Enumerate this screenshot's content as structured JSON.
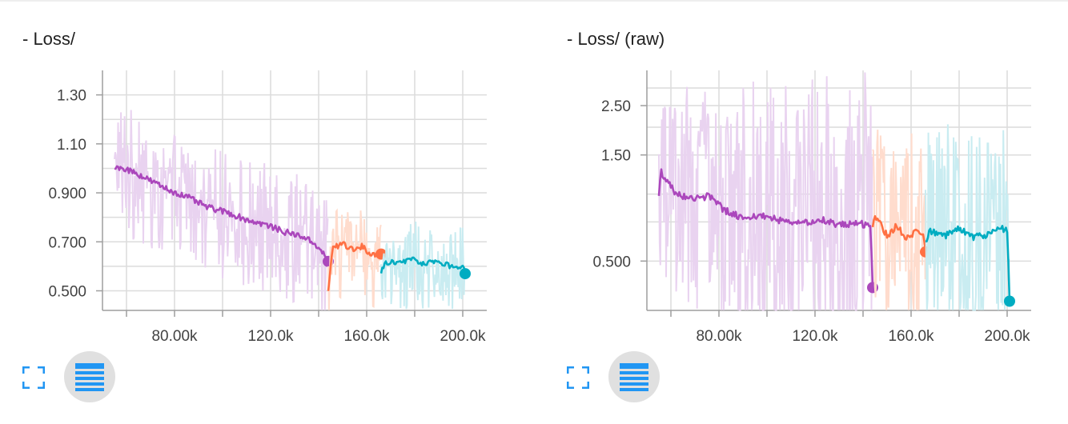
{
  "colors": {
    "grid": "#dcdcdc",
    "axis": "#9e9e9e",
    "button_blue": "#2196f3",
    "button_bg": "#e0e0e0"
  },
  "cards": [
    {
      "title": "- Loss/",
      "expand_icon": "fullscreen-icon",
      "data_icon": "list-icon"
    },
    {
      "title": "- Loss/ (raw)",
      "expand_icon": "fullscreen-icon",
      "data_icon": "list-icon"
    }
  ],
  "chart_data": [
    {
      "type": "line",
      "title": "- Loss/",
      "xlabel": "",
      "ylabel": "",
      "xlim": [
        50000,
        210000
      ],
      "ylim": [
        0.42,
        1.4
      ],
      "y_scale": "linear",
      "x_ticks": [
        80000,
        120000,
        160000,
        200000
      ],
      "x_tick_labels": [
        "80.00k",
        "120.0k",
        "160.0k",
        "200.0k"
      ],
      "y_ticks": [
        0.5,
        0.7,
        0.9,
        1.1,
        1.3
      ],
      "y_tick_labels": [
        "0.500",
        "0.700",
        "0.900",
        "1.10",
        "1.30"
      ],
      "grid": true,
      "legend": "none",
      "series": [
        {
          "color": "#ab47bc",
          "raw_color": "#e9d3f0",
          "x": [
            55000,
            62000,
            70000,
            78000,
            86000,
            94000,
            102000,
            110000,
            118000,
            126000,
            134000,
            140000,
            144000
          ],
          "y": [
            1.01,
            0.99,
            0.95,
            0.91,
            0.88,
            0.84,
            0.82,
            0.79,
            0.77,
            0.74,
            0.72,
            0.68,
            0.62
          ],
          "raw_range": [
            0.28,
            0.25
          ]
        },
        {
          "color": "#ff7043",
          "raw_color": "#ffdccd",
          "x": [
            144000,
            146000,
            150000,
            154000,
            158000,
            162000,
            166000
          ],
          "y": [
            0.5,
            0.68,
            0.69,
            0.67,
            0.68,
            0.65,
            0.65
          ],
          "raw_range": [
            0.22,
            0.15
          ]
        },
        {
          "color": "#00acc1",
          "raw_color": "#c9ecf1",
          "x": [
            166000,
            168000,
            172000,
            176000,
            180000,
            184000,
            188000,
            192000,
            196000,
            200000,
            201000
          ],
          "y": [
            0.58,
            0.62,
            0.61,
            0.62,
            0.63,
            0.61,
            0.62,
            0.61,
            0.6,
            0.6,
            0.57
          ],
          "raw_range": [
            0.2,
            0.16
          ]
        }
      ]
    },
    {
      "type": "line",
      "title": "- Loss/ (raw)",
      "xlabel": "",
      "ylabel": "",
      "xlim": [
        50000,
        210000
      ],
      "ylim": [
        0.3,
        3.6
      ],
      "y_scale": "log",
      "x_ticks": [
        80000,
        120000,
        160000,
        200000
      ],
      "x_tick_labels": [
        "80.00k",
        "120.0k",
        "160.0k",
        "200.0k"
      ],
      "y_ticks": [
        0.5,
        1.5,
        2.5
      ],
      "y_tick_labels": [
        "0.500",
        "1.50",
        "2.50"
      ],
      "grid": true,
      "legend": "none",
      "series": [
        {
          "color": "#ab47bc",
          "raw_color": "#e9d3f0",
          "x": [
            55000,
            56000,
            62000,
            70000,
            76000,
            82000,
            90000,
            98000,
            106000,
            114000,
            122000,
            130000,
            138000,
            143000,
            144000
          ],
          "y": [
            1.0,
            1.25,
            1.0,
            0.95,
            0.98,
            0.85,
            0.78,
            0.8,
            0.76,
            0.74,
            0.77,
            0.73,
            0.74,
            0.72,
            0.38
          ],
          "raw_range": [
            0.55,
            1.6
          ]
        },
        {
          "color": "#ff7043",
          "raw_color": "#ffdccd",
          "x": [
            144000,
            145000,
            150000,
            154000,
            158000,
            162000,
            165000,
            166000
          ],
          "y": [
            0.72,
            0.8,
            0.65,
            0.72,
            0.64,
            0.68,
            0.66,
            0.55
          ],
          "raw_range": [
            0.35,
            1.1
          ]
        },
        {
          "color": "#00acc1",
          "raw_color": "#c9ecf1",
          "x": [
            166000,
            168000,
            174000,
            180000,
            186000,
            192000,
            198000,
            200000,
            201000
          ],
          "y": [
            0.62,
            0.68,
            0.65,
            0.7,
            0.64,
            0.66,
            0.7,
            0.68,
            0.33
          ],
          "raw_range": [
            0.33,
            1.4
          ]
        }
      ]
    }
  ]
}
